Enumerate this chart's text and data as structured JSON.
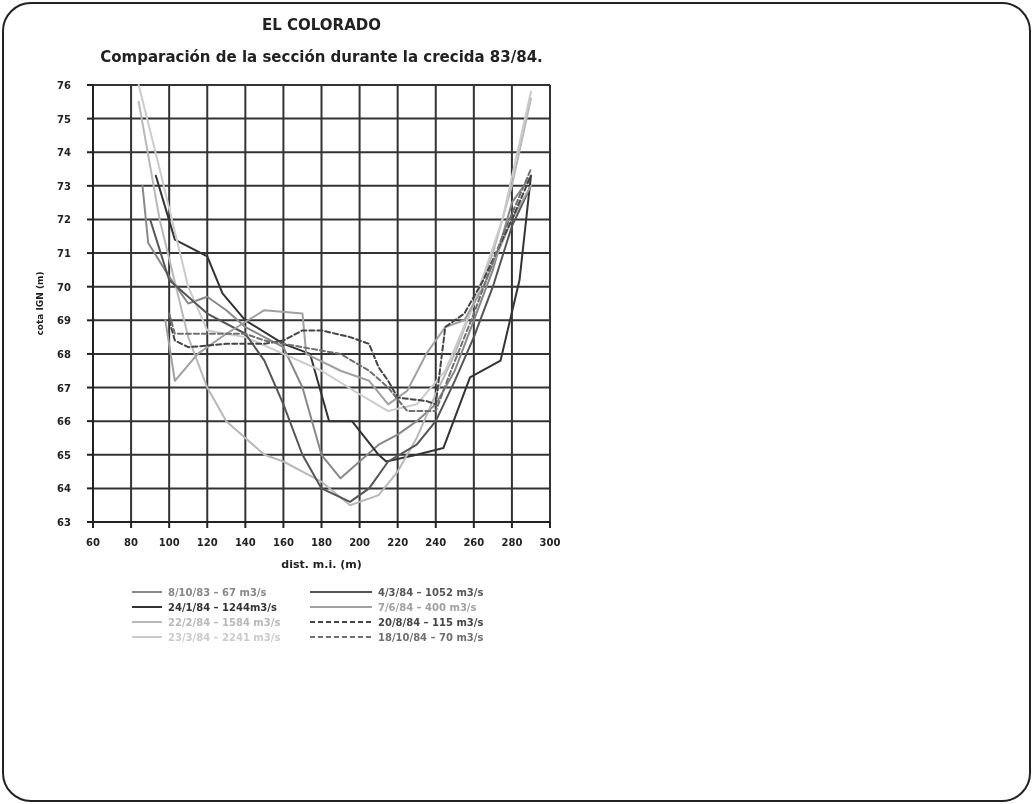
{
  "chart_data": {
    "type": "line",
    "title": "EL COLORADO",
    "subtitle": "Comparación de la sección durante la crecida 83/84.",
    "xlabel": "dist. m.i. (m)",
    "ylabel": "cota IGN (m)",
    "xlim": [
      60,
      300
    ],
    "xticks": [
      60,
      80,
      100,
      120,
      140,
      160,
      180,
      200,
      220,
      240,
      260,
      280,
      300
    ],
    "ylim": [
      63,
      76
    ],
    "yticks": [
      63,
      64,
      65,
      66,
      67,
      68,
      69,
      70,
      71,
      72,
      73,
      74,
      75,
      76
    ],
    "grid": true,
    "legend": "bottom",
    "series": [
      {
        "name": "8/10/83 – 67 m3/s",
        "color": "#888888",
        "line_style": "solid",
        "x": [
          86,
          89,
          100,
          110,
          120,
          130,
          140,
          150,
          160,
          170,
          180,
          190,
          200,
          210,
          220,
          230,
          240,
          250,
          260,
          270,
          280,
          290
        ],
        "values": [
          73,
          71.3,
          70.3,
          69.5,
          69.7,
          69.3,
          68.8,
          68.5,
          68.2,
          67,
          65,
          64.3,
          64.8,
          65.3,
          65.6,
          66,
          66.5,
          67.5,
          69,
          70.5,
          72.5,
          73.3
        ]
      },
      {
        "name": "24/1/84 – 1244m3/s",
        "color": "#333333",
        "line_style": "solid",
        "x": [
          93,
          103,
          120,
          128,
          140,
          160,
          174,
          184,
          196,
          210,
          214,
          230,
          244,
          258,
          274,
          284,
          290
        ],
        "values": [
          73.3,
          71.4,
          70.9,
          69.8,
          69,
          68.3,
          68,
          66,
          66,
          65,
          64.8,
          65,
          65.2,
          67.3,
          67.8,
          70.2,
          73.3
        ]
      },
      {
        "name": "22/2/84 – 1584 m3/s",
        "color": "#b8b8b8",
        "line_style": "solid",
        "x": [
          84,
          95,
          110,
          120,
          130,
          140,
          150,
          160,
          170,
          180,
          195,
          210,
          220,
          230,
          240,
          250,
          260,
          270,
          280,
          290
        ],
        "values": [
          75.5,
          72,
          68.5,
          67,
          66,
          65.5,
          65,
          64.8,
          64.5,
          64.2,
          63.5,
          63.8,
          64.5,
          65.5,
          66.8,
          68,
          69.5,
          71,
          73,
          75.6
        ]
      },
      {
        "name": "23/3/84 – 2241 m3/s",
        "color": "#cbcbcb",
        "line_style": "solid",
        "x": [
          84,
          95,
          110,
          120,
          140,
          160,
          180,
          200,
          215,
          230,
          245,
          260,
          275,
          290
        ],
        "values": [
          76,
          73.5,
          70,
          68.7,
          68.5,
          68,
          67.5,
          66.8,
          66.3,
          66.5,
          67.5,
          69.5,
          72,
          75.8
        ]
      },
      {
        "name": "4/3/84 – 1052 m3/s",
        "color": "#555555",
        "line_style": "solid",
        "x": [
          90,
          100,
          120,
          140,
          150,
          160,
          170,
          180,
          195,
          205,
          215,
          230,
          240,
          250,
          260,
          270,
          280,
          290
        ],
        "values": [
          72,
          70.2,
          69.2,
          68.6,
          67.8,
          66.5,
          65,
          64,
          63.6,
          64,
          64.8,
          65.3,
          66,
          67.2,
          68.5,
          70,
          71.8,
          73
        ]
      },
      {
        "name": "7/6/84 – 400 m3/s",
        "color": "#a0a0a0",
        "line_style": "solid",
        "x": [
          98,
          103,
          115,
          130,
          150,
          170,
          172,
          190,
          205,
          215,
          225,
          235,
          245,
          255,
          265,
          280,
          290
        ],
        "values": [
          69,
          67.2,
          68,
          68.6,
          69.3,
          69.2,
          68,
          67.5,
          67.2,
          66.5,
          66.9,
          68,
          68.8,
          69,
          70,
          72,
          73
        ]
      },
      {
        "name": "20/8/84 – 115 m3/s",
        "color": "#444444",
        "line_style": "dashed",
        "x": [
          100,
          103,
          110,
          130,
          150,
          160,
          170,
          180,
          195,
          205,
          210,
          215,
          220,
          235,
          240,
          245,
          255,
          265,
          280,
          290
        ],
        "values": [
          69,
          68.4,
          68.2,
          68.3,
          68.3,
          68.4,
          68.7,
          68.7,
          68.5,
          68.3,
          67.6,
          67.2,
          66.7,
          66.6,
          66.5,
          68.8,
          69.2,
          70.2,
          72,
          73.3
        ]
      },
      {
        "name": "18/10/84 – 70 m3/s",
        "color": "#707070",
        "line_style": "dashed",
        "x": [
          100,
          103,
          120,
          140,
          150,
          170,
          190,
          205,
          215,
          225,
          240,
          248,
          260,
          275,
          290
        ],
        "values": [
          69.2,
          68.6,
          68.6,
          68.6,
          68.4,
          68.2,
          68,
          67.5,
          67,
          66.3,
          66.3,
          67.5,
          69.2,
          71.5,
          73.5
        ]
      }
    ]
  }
}
